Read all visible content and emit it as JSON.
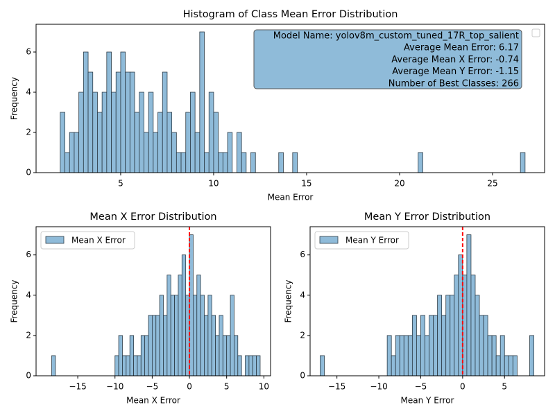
{
  "chart_data": [
    {
      "type": "histogram",
      "title": "Histogram of Class Mean Error Distribution",
      "xlabel": "Mean Error",
      "ylabel": "Frequency",
      "bins": [
        1.5,
        1.75,
        2,
        2.25,
        2.5,
        2.75,
        3,
        3.25,
        3.5,
        3.75,
        4,
        4.25,
        4.5,
        4.75,
        5,
        5.25,
        5.5,
        5.75,
        6,
        6.25,
        6.5,
        6.75,
        7,
        7.25,
        7.5,
        7.75,
        8,
        8.25,
        8.5,
        8.75,
        9,
        9.25,
        9.5,
        9.75,
        10,
        10.25,
        10.5,
        10.75,
        11,
        11.25,
        11.5,
        11.75,
        12,
        12.25,
        12.5,
        12.75,
        13,
        13.25,
        13.5,
        13.75,
        14,
        14.25,
        14.5,
        14.75,
        15,
        15.25,
        15.5,
        15.75,
        16,
        16.25,
        16.5,
        16.75,
        17,
        17.25,
        17.5,
        17.75,
        18,
        18.25,
        18.5,
        18.75,
        19,
        19.25,
        19.5,
        19.75,
        20,
        20.25,
        20.5,
        20.75,
        21,
        21.25,
        21.5,
        21.75,
        22,
        22.25,
        22.5,
        22.75,
        23,
        23.25,
        23.5,
        23.75,
        24,
        24.25,
        24.5,
        24.75,
        25,
        25.25,
        25.5,
        25.75,
        26,
        26.25,
        26.5,
        26.75
      ],
      "series": [
        {
          "color": "#8fbbd9",
          "values": [
            0,
            3,
            1,
            2,
            2,
            4,
            6,
            5,
            4,
            3,
            4,
            6,
            4,
            5,
            6,
            5,
            5,
            3,
            4,
            2,
            4,
            2,
            3,
            5,
            3,
            2,
            1,
            1,
            3,
            4,
            2,
            7,
            1,
            4,
            3,
            1,
            1,
            2,
            0,
            2,
            1,
            0,
            1,
            0,
            0,
            0,
            0,
            0,
            1,
            0,
            0,
            1,
            0,
            0,
            0,
            0,
            0,
            0,
            0,
            0,
            0,
            0,
            0,
            0,
            0,
            0,
            0,
            0,
            0,
            0,
            0,
            0,
            0,
            0,
            0,
            0,
            0,
            0,
            1,
            0,
            0,
            0,
            0,
            0,
            0,
            0,
            0,
            0,
            0,
            0,
            0,
            0,
            0,
            0,
            0,
            0,
            0,
            0,
            0,
            0,
            1
          ]
        }
      ],
      "xlim": [
        0.45,
        27.8
      ],
      "ylim": [
        0,
        7.38
      ],
      "xticks": [
        5,
        10,
        15,
        20,
        25
      ],
      "yticks": [
        0,
        2,
        4,
        6
      ],
      "annotation": [
        "Model Name: yolov8m_custom_tuned_17R_top_salient",
        "Average Mean Error: 6.17",
        "Average Mean X Error: -0.74",
        "Average Mean Y Error: -1.15",
        "Number of Best Classes: 266"
      ],
      "legend": "upper right"
    },
    {
      "type": "histogram",
      "title": "Mean X Error Distribution",
      "xlabel": "Mean X Error",
      "ylabel": "Frequency",
      "bins": [
        -18.5,
        -18,
        -17.5,
        -17,
        -16.5,
        -16,
        -15.5,
        -15,
        -14.5,
        -14,
        -13.5,
        -13,
        -12.5,
        -12,
        -11.5,
        -11,
        -10.5,
        -10,
        -9.5,
        -9,
        -8.5,
        -8,
        -7.5,
        -7,
        -6.5,
        -6,
        -5.5,
        -5,
        -4.5,
        -4,
        -3.5,
        -3,
        -2.5,
        -2,
        -1.5,
        -1,
        -0.5,
        0,
        0.5,
        1,
        1.5,
        2,
        2.5,
        3,
        3.5,
        4,
        4.5,
        5,
        5.5,
        6,
        6.5,
        7,
        7.5,
        8,
        8.5,
        9,
        9.5
      ],
      "series": [
        {
          "name": "Mean X Error",
          "color": "#8fbbd9",
          "values": [
            1,
            0,
            0,
            0,
            0,
            0,
            0,
            0,
            0,
            0,
            0,
            0,
            0,
            0,
            0,
            0,
            0,
            1,
            2,
            1,
            1,
            2,
            1,
            1,
            2,
            2,
            3,
            3,
            3,
            4,
            3,
            5,
            4,
            4,
            5,
            6,
            4,
            7,
            4,
            5,
            4,
            3,
            4,
            3,
            2,
            3,
            2,
            2,
            4,
            2,
            1,
            0,
            1,
            1,
            1,
            1
          ]
        }
      ],
      "xlim": [
        -20.6,
        10.9
      ],
      "ylim": [
        0,
        7.4
      ],
      "xticks": [
        {
          "value": -15,
          "label": "−15"
        },
        {
          "value": -10,
          "label": "−10"
        },
        {
          "value": -5,
          "label": "−5"
        },
        0,
        5,
        10
      ],
      "yticks": [
        0,
        2,
        4,
        6
      ],
      "vline": {
        "value": 0,
        "color": "#ff0000"
      },
      "legend": "upper left"
    },
    {
      "type": "histogram",
      "title": "Mean Y Error Distribution",
      "xlabel": "Mean Y Error",
      "ylabel": "Frequency",
      "bins": [
        -17,
        -16.5,
        -16,
        -15.5,
        -15,
        -14.5,
        -14,
        -13.5,
        -13,
        -12.5,
        -12,
        -11.5,
        -11,
        -10.5,
        -10,
        -9.5,
        -9,
        -8.5,
        -8,
        -7.5,
        -7,
        -6.5,
        -6,
        -5.5,
        -5,
        -4.5,
        -4,
        -3.5,
        -3,
        -2.5,
        -2,
        -1.5,
        -1,
        -0.5,
        0,
        0.5,
        1,
        1.5,
        2,
        2.5,
        3,
        3.5,
        4,
        4.5,
        5,
        5.5,
        6,
        6.5,
        7,
        7.5,
        8,
        8.5
      ],
      "series": [
        {
          "name": "Mean Y Error",
          "color": "#8fbbd9",
          "values": [
            1,
            0,
            0,
            0,
            0,
            0,
            0,
            0,
            0,
            0,
            0,
            0,
            0,
            0,
            0,
            0,
            2,
            1,
            2,
            2,
            2,
            2,
            3,
            2,
            3,
            2,
            3,
            3,
            4,
            3,
            4,
            4,
            5,
            6,
            5,
            7,
            5,
            4,
            3,
            3,
            2,
            2,
            1,
            2,
            1,
            1,
            1,
            0,
            0,
            0,
            2
          ]
        }
      ],
      "xlim": [
        -18.2,
        9.78
      ],
      "ylim": [
        0,
        7.4
      ],
      "xticks": [
        {
          "value": -15,
          "label": "−15"
        },
        {
          "value": -10,
          "label": "−10"
        },
        {
          "value": -5,
          "label": "−5"
        },
        0,
        5
      ],
      "yticks": [
        0,
        2,
        4,
        6
      ],
      "vline": {
        "value": 0,
        "color": "#ff0000"
      },
      "legend": "upper left"
    }
  ]
}
